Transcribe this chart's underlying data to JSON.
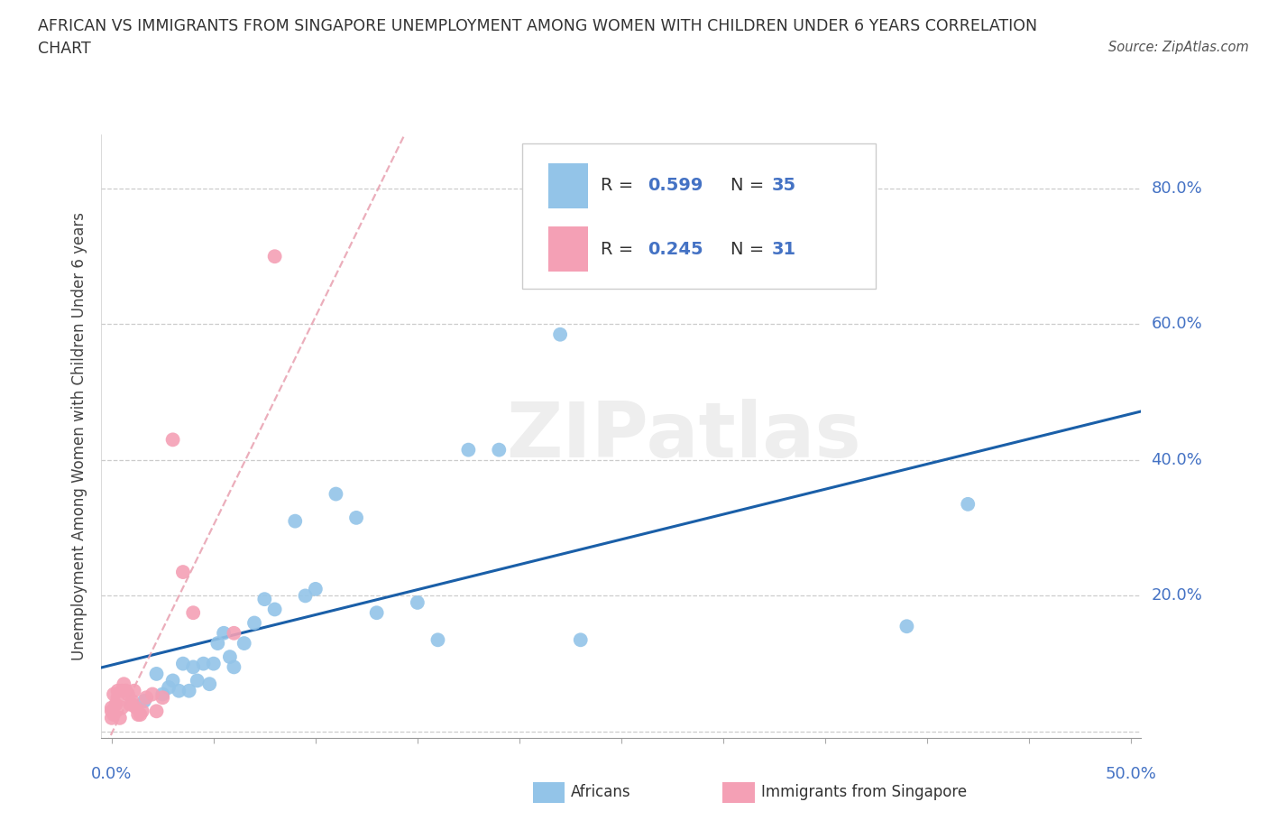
{
  "title_line1": "AFRICAN VS IMMIGRANTS FROM SINGAPORE UNEMPLOYMENT AMONG WOMEN WITH CHILDREN UNDER 6 YEARS CORRELATION",
  "title_line2": "CHART",
  "source_text": "Source: ZipAtlas.com",
  "ylabel": "Unemployment Among Women with Children Under 6 years",
  "xlim": [
    -0.005,
    0.505
  ],
  "ylim": [
    -0.01,
    0.88
  ],
  "xticks": [
    0.0,
    0.05,
    0.1,
    0.15,
    0.2,
    0.25,
    0.3,
    0.35,
    0.4,
    0.45,
    0.5
  ],
  "yticks": [
    0.0,
    0.2,
    0.4,
    0.6,
    0.8
  ],
  "xticklabels_sparse": {
    "0.0": "0.0%",
    "0.5": "50.0%"
  },
  "yticklabels": [
    "",
    "20.0%",
    "40.0%",
    "60.0%",
    "80.0%"
  ],
  "background_color": "#ffffff",
  "watermark": "ZIPatlas",
  "africans_color": "#93c4e8",
  "singapore_color": "#f4a0b5",
  "trendline_africans_color": "#1a5fa8",
  "trendline_singapore_color": "#e8a0b0",
  "R_africans": 0.599,
  "N_africans": 35,
  "R_singapore": 0.245,
  "N_singapore": 31,
  "africans_x": [
    0.016,
    0.022,
    0.025,
    0.028,
    0.03,
    0.033,
    0.035,
    0.038,
    0.04,
    0.042,
    0.045,
    0.048,
    0.05,
    0.052,
    0.055,
    0.058,
    0.06,
    0.065,
    0.07,
    0.075,
    0.08,
    0.09,
    0.095,
    0.1,
    0.11,
    0.12,
    0.13,
    0.15,
    0.16,
    0.175,
    0.19,
    0.22,
    0.23,
    0.39,
    0.42
  ],
  "africans_y": [
    0.045,
    0.085,
    0.055,
    0.065,
    0.075,
    0.06,
    0.1,
    0.06,
    0.095,
    0.075,
    0.1,
    0.07,
    0.1,
    0.13,
    0.145,
    0.11,
    0.095,
    0.13,
    0.16,
    0.195,
    0.18,
    0.31,
    0.2,
    0.21,
    0.35,
    0.315,
    0.175,
    0.19,
    0.135,
    0.415,
    0.415,
    0.585,
    0.135,
    0.155,
    0.335
  ],
  "singapore_x": [
    0.0,
    0.0,
    0.0,
    0.001,
    0.001,
    0.002,
    0.003,
    0.003,
    0.004,
    0.005,
    0.005,
    0.006,
    0.007,
    0.008,
    0.009,
    0.01,
    0.01,
    0.011,
    0.012,
    0.013,
    0.014,
    0.015,
    0.017,
    0.02,
    0.022,
    0.025,
    0.03,
    0.035,
    0.04,
    0.06,
    0.08
  ],
  "singapore_y": [
    0.02,
    0.03,
    0.035,
    0.025,
    0.055,
    0.04,
    0.05,
    0.06,
    0.02,
    0.035,
    0.06,
    0.07,
    0.06,
    0.055,
    0.04,
    0.04,
    0.045,
    0.06,
    0.035,
    0.025,
    0.025,
    0.03,
    0.05,
    0.055,
    0.03,
    0.05,
    0.43,
    0.235,
    0.175,
    0.145,
    0.7
  ]
}
